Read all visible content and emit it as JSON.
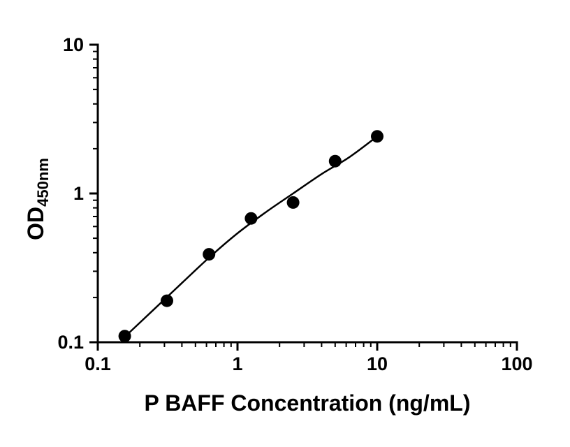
{
  "page": {
    "background": "#ffffff"
  },
  "chart_data": {
    "type": "scatter",
    "title": "",
    "xlabel": "P BAFF Concentration (ng/mL)",
    "ylabel": {
      "text": "OD450nm",
      "main": "OD",
      "sub": "450nm"
    },
    "x_scale": "log",
    "y_scale": "log",
    "xlim": [
      0.1,
      100
    ],
    "ylim": [
      0.1,
      10
    ],
    "grid": false,
    "legend_position": "none",
    "x_ticks": [
      {
        "value": 0.1,
        "label": "0.1"
      },
      {
        "value": 1,
        "label": "1"
      },
      {
        "value": 10,
        "label": "10"
      },
      {
        "value": 100,
        "label": "100"
      }
    ],
    "y_ticks": [
      {
        "value": 0.1,
        "label": "0.1"
      },
      {
        "value": 1,
        "label": "1"
      },
      {
        "value": 10,
        "label": "10"
      }
    ],
    "minor_tick_multiples": [
      2,
      3,
      4,
      5,
      6,
      7,
      8,
      9
    ],
    "points": [
      {
        "x": 0.156,
        "y": 0.11
      },
      {
        "x": 0.3125,
        "y": 0.19
      },
      {
        "x": 0.625,
        "y": 0.39
      },
      {
        "x": 1.25,
        "y": 0.68
      },
      {
        "x": 2.5,
        "y": 0.87
      },
      {
        "x": 5,
        "y": 1.65
      },
      {
        "x": 10,
        "y": 2.42
      }
    ],
    "fit_curve": [
      {
        "x": 0.15,
        "y": 0.105
      },
      {
        "x": 0.25,
        "y": 0.165
      },
      {
        "x": 0.4,
        "y": 0.25
      },
      {
        "x": 0.625,
        "y": 0.37
      },
      {
        "x": 1.0,
        "y": 0.54
      },
      {
        "x": 1.6,
        "y": 0.75
      },
      {
        "x": 2.5,
        "y": 1.0
      },
      {
        "x": 4.0,
        "y": 1.35
      },
      {
        "x": 6.3,
        "y": 1.75
      },
      {
        "x": 10,
        "y": 2.42
      }
    ],
    "marker": {
      "shape": "circle",
      "radius": 9
    },
    "colors": {
      "axis": "#000000",
      "points": "#000000",
      "curve": "#000000",
      "text": "#000000",
      "background": "#ffffff"
    }
  }
}
